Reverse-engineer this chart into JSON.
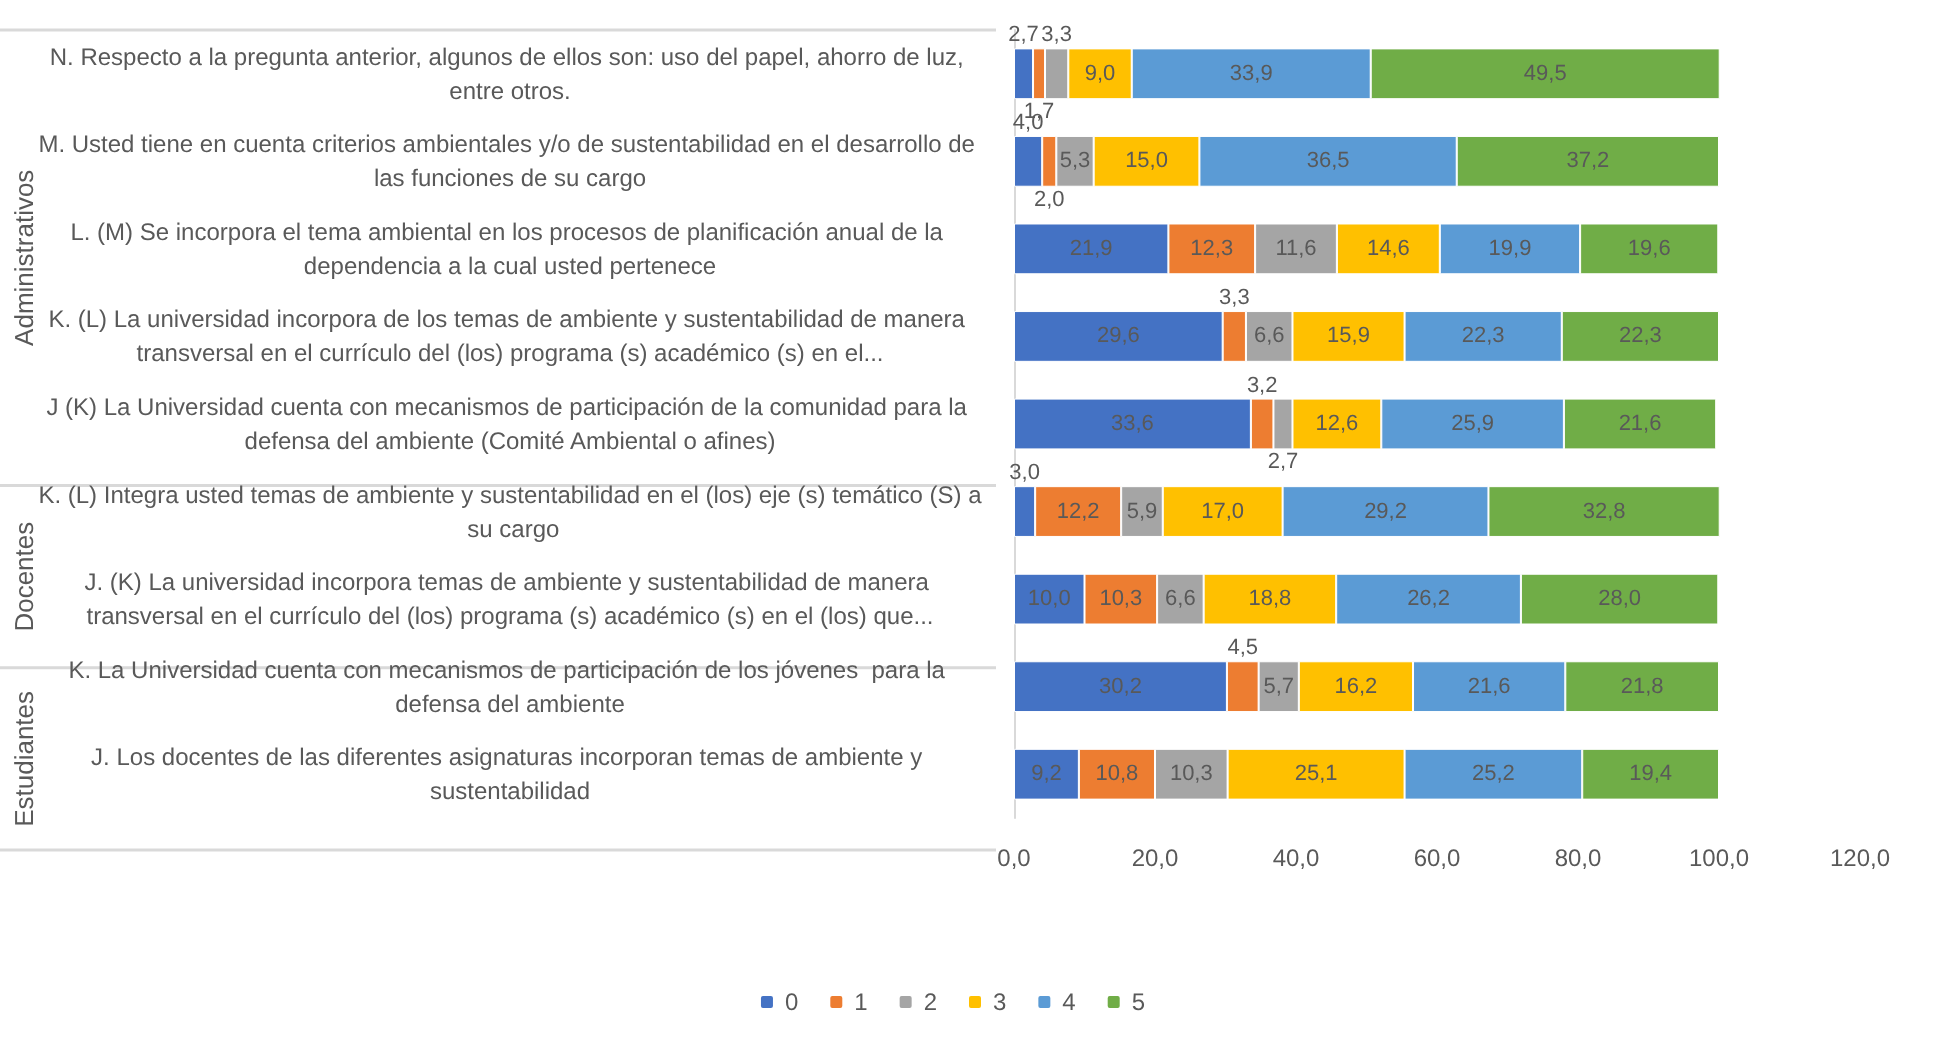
{
  "chart_data": {
    "type": "bar",
    "orientation": "horizontal",
    "stacked": true,
    "legend": "bottom",
    "grid": false,
    "categories": [
      "N. Respecto a la pregunta anterior, algunos de ellos son: uso del papel, ahorro de luz, entre otros.",
      "M. Usted tiene en cuenta criterios ambientales y/o de sustentabilidad en el desarrollo de las funciones de su cargo",
      "L. (M) Se incorpora el tema ambiental en los procesos de planificación anual de la dependencia a la cual usted pertenece",
      "K. (L) La universidad incorpora de los temas de ambiente y sustentabilidad de manera transversal en el currículo del (los) programa (s) académico (s) en el...",
      "J (K) La Universidad cuenta con mecanismos de participación de la comunidad para la defensa del ambiente (Comité Ambiental o afines)",
      "K. (L) Integra usted temas de ambiente y sustentabilidad en el (los) eje (s) temático (S) a su cargo",
      "J. (K) La universidad incorpora temas de ambiente y sustentabilidad de manera transversal en el currículo del (los) programa (s) académico (s) en el (los) que...",
      "K. La Universidad cuenta con mecanismos de participación de los jóvenes  para la defensa del ambiente",
      "J. Los docentes de las diferentes asignaturas incorporan temas de ambiente y sustentabilidad"
    ],
    "series": [
      {
        "name": "0",
        "color": "#4472c4",
        "values": [
          2.7,
          4.0,
          21.9,
          29.6,
          33.6,
          3.0,
          10.0,
          30.2,
          9.2
        ],
        "value_labels": [
          "2,7",
          "4,0",
          "21,9",
          "29,6",
          "33,6",
          "3,0",
          "10,0",
          "30,2",
          "9,2"
        ]
      },
      {
        "name": "1",
        "color": "#ed7d31",
        "values": [
          1.7,
          2.0,
          12.3,
          3.3,
          3.2,
          12.2,
          10.3,
          4.5,
          10.8
        ],
        "value_labels": [
          "1,7",
          "2,0",
          "12,3",
          "3,3",
          "3,2",
          "12,2",
          "10,3",
          "4,5",
          "10,8"
        ]
      },
      {
        "name": "2",
        "color": "#a5a5a5",
        "values": [
          3.3,
          5.3,
          11.6,
          6.6,
          2.7,
          5.9,
          6.6,
          5.7,
          10.3
        ],
        "value_labels": [
          "3,3",
          "5,3",
          "11,6",
          "6,6",
          "2,7",
          "5,9",
          "6,6",
          "5,7",
          "10,3"
        ]
      },
      {
        "name": "3",
        "color": "#ffc000",
        "values": [
          9.0,
          15.0,
          14.6,
          15.9,
          12.6,
          17.0,
          18.8,
          16.2,
          25.1
        ],
        "value_labels": [
          "9,0",
          "15,0",
          "14,6",
          "15,9",
          "12,6",
          "17,0",
          "18,8",
          "16,2",
          "25,1"
        ]
      },
      {
        "name": "4",
        "color": "#5b9bd5",
        "values": [
          33.9,
          36.5,
          19.9,
          22.3,
          25.9,
          29.2,
          26.2,
          21.6,
          25.2
        ],
        "value_labels": [
          "33,9",
          "36,5",
          "19,9",
          "22,3",
          "25,9",
          "29,2",
          "26,2",
          "21,6",
          "25,2"
        ]
      },
      {
        "name": "5",
        "color": "#70ad47",
        "values": [
          49.5,
          37.2,
          19.6,
          22.3,
          21.6,
          32.8,
          28.0,
          21.8,
          19.4
        ],
        "value_labels": [
          "49,5",
          "37,2",
          "19,6",
          "22,3",
          "21,6",
          "32,8",
          "28,0",
          "21,8",
          "19,4"
        ]
      }
    ],
    "xlim": [
      0,
      120
    ],
    "xticks": [
      {
        "value": 0,
        "label": "0,0"
      },
      {
        "value": 20,
        "label": "20,0"
      },
      {
        "value": 40,
        "label": "40,0"
      },
      {
        "value": 60,
        "label": "60,0"
      },
      {
        "value": 80,
        "label": "80,0"
      },
      {
        "value": 100,
        "label": "100,0"
      },
      {
        "value": 120,
        "label": "120,0"
      }
    ],
    "annotations": [
      "Administrativos",
      "Docentes",
      "Estudiantes"
    ]
  }
}
